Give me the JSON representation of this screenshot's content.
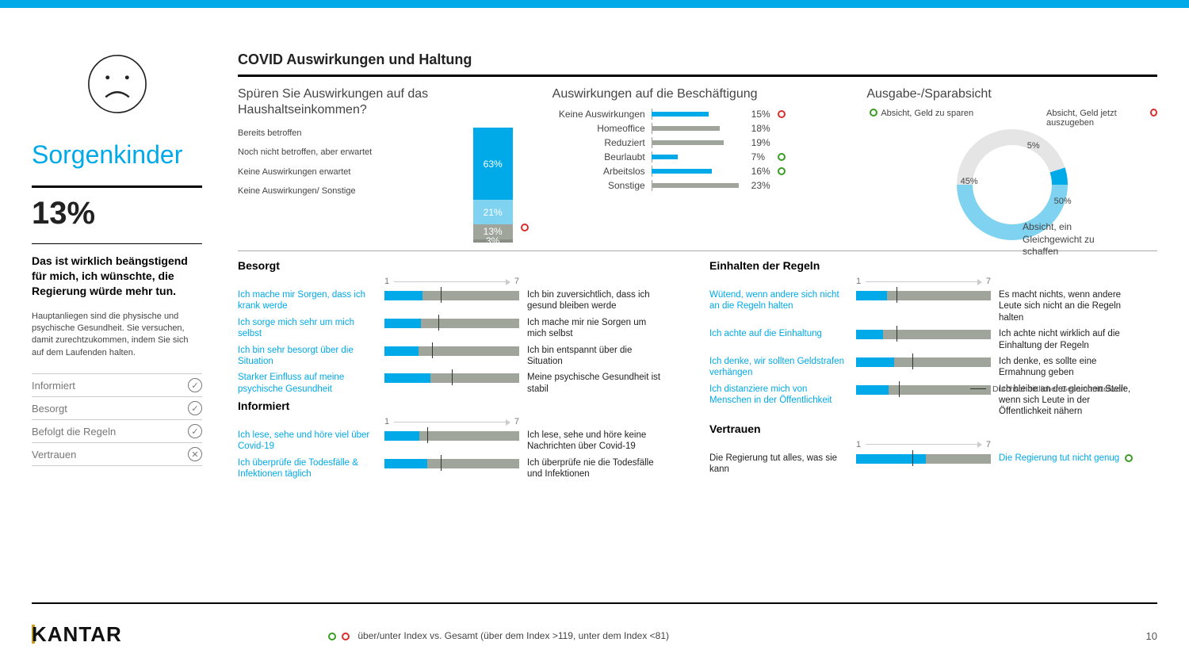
{
  "colors": {
    "accent": "#00a9e7",
    "grey": "#a0a59b",
    "green": "#3a9d23",
    "red": "#d92e2e",
    "lightblue": "#7fd3f0",
    "darkgrey": "#8a8f86",
    "donut_grey": "#e5e5e5"
  },
  "segment": {
    "title": "Sorgenkinder",
    "pct": "13%",
    "quote": "Das ist wirklich beängstigend für mich, ich wünschte, die Regierung würde mehr tun.",
    "desc": "Hauptanliegen sind die physische und psychische Gesundheit. Sie versuchen, damit zurechtzukommen, indem Sie sich auf dem Laufenden halten.",
    "checklist": [
      {
        "label": "Informiert",
        "ok": true
      },
      {
        "label": "Besorgt",
        "ok": true
      },
      {
        "label": "Befolgt die Regeln",
        "ok": true
      },
      {
        "label": "Vertrauen",
        "ok": false
      }
    ]
  },
  "main_title": "COVID Auswirkungen und Haltung",
  "stacked": {
    "title": "Spüren Sie Auswirkungen auf das Haushaltseinkommen?",
    "labels": [
      "Bereits betroffen",
      "Noch nicht betroffen, aber erwartet",
      "Keine Auswirkungen erwartet",
      "Keine Auswirkungen/ Sonstige"
    ],
    "segments": [
      {
        "value": 63,
        "label": "63%",
        "color": "#00a9e7"
      },
      {
        "value": 21,
        "label": "21%",
        "color": "#7fd3f0"
      },
      {
        "value": 13,
        "label": "13%",
        "color": "#a0a59b"
      },
      {
        "value": 3,
        "label": "3%",
        "color": "#8a8f86"
      }
    ],
    "indicator": "red"
  },
  "employment": {
    "title": "Auswirkungen auf die Beschäftigung",
    "max": 25,
    "rows": [
      {
        "label": "Keine Auswirkungen",
        "value": 15,
        "color": "#00a9e7",
        "ind": "red"
      },
      {
        "label": "Homeoffice",
        "value": 18,
        "color": "#a0a59b"
      },
      {
        "label": "Reduziert",
        "value": 19,
        "color": "#a0a59b"
      },
      {
        "label": "Beurlaubt",
        "value": 7,
        "color": "#00a9e7",
        "ind": "green"
      },
      {
        "label": "Arbeitslos",
        "value": 16,
        "color": "#00a9e7",
        "ind": "green"
      },
      {
        "label": "Sonstige",
        "value": 23,
        "color": "#a0a59b"
      }
    ]
  },
  "donut": {
    "title": "Ausgabe-/Sparabsicht",
    "segments": [
      {
        "label": "Absicht, Geld zu sparen",
        "value": 45,
        "color": "#e5e5e5",
        "ind": "green",
        "val_label": "45%"
      },
      {
        "label": "Absicht, Geld jetzt auszugeben",
        "value": 5,
        "color": "#00a9e7",
        "ind": "red",
        "val_label": "5%"
      },
      {
        "label": "Absicht, ein Gleichgewicht zu schaffen",
        "value": 50,
        "color": "#7fd3f0",
        "val_label": "50%"
      }
    ]
  },
  "scales": {
    "left": [
      {
        "head": "Besorgt",
        "axis_left": "1",
        "axis_right": "7",
        "rows": [
          {
            "l": "Ich mache mir Sorgen, dass ich krank werde",
            "r": "Ich bin zuversichtlich, dass ich gesund bleiben werde",
            "blue": 0.28,
            "mark": 0.42
          },
          {
            "l": "Ich sorge mich sehr um mich selbst",
            "r": "Ich mache mir nie Sorgen um mich selbst",
            "blue": 0.27,
            "mark": 0.4
          },
          {
            "l": "Ich bin sehr besorgt über die Situation",
            "r": "Ich bin entspannt über die Situation",
            "blue": 0.25,
            "mark": 0.35
          },
          {
            "l": "Starker Einfluss auf meine psychische Gesundheit",
            "r": "Meine psychische Gesundheit ist stabil",
            "blue": 0.34,
            "mark": 0.5
          }
        ]
      },
      {
        "head": "Informiert",
        "axis_left": "1",
        "axis_right": "7",
        "rows": [
          {
            "l": "Ich lese, sehe und höre viel über Covid-19",
            "r": "Ich lese, sehe und höre keine Nachrichten über Covid-19",
            "blue": 0.26,
            "mark": 0.32
          },
          {
            "l": "Ich überprüfe die Todesfälle & Infektionen täglich",
            "r": "Ich überprüfe nie die Todesfälle und Infektionen",
            "blue": 0.32,
            "mark": 0.42
          }
        ]
      }
    ],
    "right": [
      {
        "head": "Einhalten der Regeln",
        "axis_left": "1",
        "axis_right": "7",
        "rows": [
          {
            "l": "Wütend, wenn andere sich nicht an die Regeln halten",
            "r": "Es macht nichts, wenn andere Leute sich nicht an die Regeln halten",
            "blue": 0.23,
            "mark": 0.3
          },
          {
            "l": "Ich achte auf die Einhaltung",
            "r": "Ich achte nicht wirklich auf die Einhaltung der Regeln",
            "blue": 0.2,
            "mark": 0.3
          },
          {
            "l": "Ich denke, wir sollten Geldstrafen verhängen",
            "r": "Ich denke, es sollte eine Ermahnung geben",
            "blue": 0.28,
            "mark": 0.42
          },
          {
            "l": "Ich distanziere mich von Menschen in der Öffentlichkeit",
            "r": "Ich bleibe an der gleichen Stelle, wenn sich Leute in der Öffentlichkeit nähern",
            "blue": 0.24,
            "mark": 0.32
          }
        ]
      },
      {
        "head": "Vertrauen",
        "axis_left": "1",
        "axis_right": "7",
        "rows": [
          {
            "l": "Die Regierung tut alles, was sie kann",
            "r": "Die Regierung tut nicht genug",
            "blue": 0.52,
            "mark": 0.42,
            "left_black": true,
            "right_blue": true,
            "ind_r": "green"
          }
        ]
      }
    ]
  },
  "legend_mean": "Durchschnittlicher Gesamtmittelwert",
  "footer_note": "über/unter Index vs. Gesamt (über dem Index >119, unter dem Index <81)",
  "page_num": "10",
  "brand": "KANTAR"
}
